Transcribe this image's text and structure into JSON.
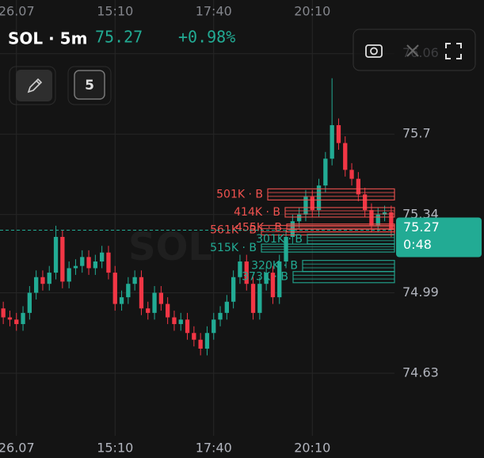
{
  "chart_data": {
    "type": "candlestick",
    "symbol": "SOL · 5m",
    "last_price": 75.27,
    "change": "+0.98%",
    "countdown": "0:48",
    "watermark": "SOL",
    "toolbar_button": "5",
    "up_color": "#22ab94",
    "down_color": "#f23645",
    "grid": true,
    "ylim": [
      74.35,
      76.3
    ],
    "yticks": [
      74.63,
      74.99,
      75.34,
      75.7,
      76.06
    ],
    "categories": [
      null,
      null,
      "26.07",
      null,
      null,
      null,
      null,
      null,
      null,
      null,
      null,
      null,
      null,
      null,
      null,
      null,
      null,
      "15:10",
      null,
      null,
      null,
      null,
      null,
      null,
      null,
      null,
      null,
      null,
      null,
      null,
      null,
      null,
      "17:40",
      null,
      null,
      null,
      null,
      null,
      null,
      null,
      null,
      null,
      null,
      null,
      null,
      null,
      null,
      "20:10",
      null,
      null,
      null,
      null,
      null,
      null,
      null,
      null,
      null,
      null,
      null,
      null
    ],
    "open": [
      74.92,
      74.88,
      74.87,
      74.85,
      74.9,
      74.99,
      75.06,
      75.03,
      75.08,
      75.24,
      75.04,
      75.1,
      75.11,
      75.15,
      75.1,
      75.13,
      75.17,
      75.08,
      74.94,
      74.97,
      75.03,
      75.06,
      74.92,
      74.9,
      74.99,
      74.94,
      74.88,
      74.85,
      74.87,
      74.81,
      74.78,
      74.74,
      74.81,
      74.87,
      74.9,
      74.95,
      75.06,
      75.13,
      75.03,
      74.9,
      75.03,
      75.08,
      74.97,
      75.13,
      75.24,
      75.31,
      75.34,
      75.42,
      75.36,
      75.47,
      75.59,
      75.74,
      75.66,
      75.54,
      75.5,
      75.43,
      75.36,
      75.29,
      75.34,
      75.35
    ],
    "high": [
      74.95,
      74.91,
      74.9,
      74.93,
      75.02,
      75.09,
      75.09,
      75.11,
      75.29,
      75.27,
      75.13,
      75.14,
      75.18,
      75.18,
      75.16,
      75.2,
      75.2,
      75.11,
      75.0,
      75.06,
      75.09,
      75.09,
      74.95,
      75.02,
      75.02,
      74.97,
      74.91,
      74.9,
      74.9,
      74.84,
      74.81,
      74.84,
      74.9,
      74.93,
      74.98,
      75.09,
      75.16,
      75.16,
      75.06,
      75.06,
      75.11,
      75.11,
      75.16,
      75.27,
      75.34,
      75.37,
      75.45,
      75.45,
      75.5,
      75.62,
      75.95,
      75.77,
      75.69,
      75.57,
      75.53,
      75.46,
      75.39,
      75.37,
      75.38,
      75.38
    ],
    "low": [
      74.85,
      74.84,
      74.82,
      74.82,
      74.87,
      74.96,
      75.0,
      75.0,
      75.05,
      75.01,
      75.01,
      75.07,
      75.08,
      75.07,
      75.07,
      75.1,
      75.05,
      74.91,
      74.91,
      74.94,
      75.0,
      74.89,
      74.87,
      74.87,
      74.91,
      74.85,
      74.82,
      74.82,
      74.78,
      74.75,
      74.71,
      74.71,
      74.78,
      74.84,
      74.87,
      74.92,
      75.03,
      75.0,
      74.87,
      74.87,
      75.0,
      74.94,
      74.94,
      75.1,
      75.21,
      75.28,
      75.31,
      75.33,
      75.33,
      75.44,
      75.56,
      75.63,
      75.51,
      75.47,
      75.4,
      75.33,
      75.26,
      75.26,
      75.31,
      75.24
    ],
    "close": [
      74.88,
      74.87,
      74.85,
      74.9,
      74.99,
      75.06,
      75.03,
      75.08,
      75.24,
      75.04,
      75.1,
      75.11,
      75.15,
      75.1,
      75.13,
      75.17,
      75.08,
      74.94,
      74.97,
      75.03,
      75.06,
      74.92,
      74.9,
      74.99,
      74.94,
      74.88,
      74.85,
      74.87,
      74.81,
      74.78,
      74.74,
      74.81,
      74.87,
      74.9,
      74.95,
      75.06,
      75.13,
      75.03,
      74.9,
      75.03,
      75.08,
      74.97,
      75.13,
      75.24,
      75.31,
      75.34,
      75.42,
      75.36,
      75.47,
      75.59,
      75.74,
      75.66,
      75.54,
      75.5,
      75.43,
      75.36,
      75.29,
      75.34,
      75.35,
      75.27
    ],
    "orders": [
      {
        "label": "501K · B",
        "price": 75.43,
        "color": "#f0524f"
      },
      {
        "label": "414K · B",
        "price": 75.35,
        "color": "#f0524f"
      },
      {
        "label": "455K · B",
        "price": 75.28,
        "color": "#f0524f"
      },
      {
        "label": "561K · B",
        "price": 75.27,
        "color": "#f0524f"
      },
      {
        "label": "301K · B",
        "price": 75.23,
        "color": "#22ab94"
      },
      {
        "label": "515K · B",
        "price": 75.19,
        "color": "#22ab94"
      },
      {
        "label": "320K · B",
        "price": 75.11,
        "color": "#22ab94"
      },
      {
        "label": "373K · B",
        "price": 75.06,
        "color": "#22ab94"
      }
    ]
  }
}
